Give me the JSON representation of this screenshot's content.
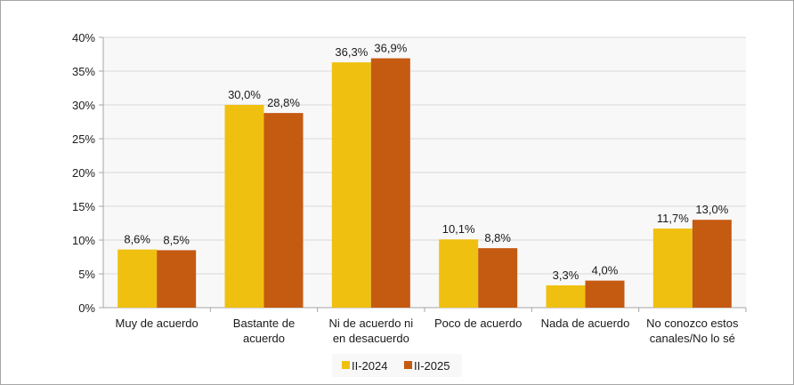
{
  "chart_data": {
    "type": "bar",
    "categories": [
      [
        "Muy de acuerdo"
      ],
      [
        "Bastante de",
        "acuerdo"
      ],
      [
        "Ni de acuerdo ni",
        "en desacuerdo"
      ],
      [
        "Poco de acuerdo"
      ],
      [
        "Nada de acuerdo"
      ],
      [
        "No conozco estos",
        "canales/No lo sé"
      ]
    ],
    "series": [
      {
        "name": "II-2024",
        "color": "#f0c010",
        "values": [
          8.6,
          30.0,
          36.3,
          10.1,
          3.3,
          11.7
        ],
        "labels": [
          "8,6%",
          "30,0%",
          "36,3%",
          "10,1%",
          "3,3%",
          "11,7%"
        ]
      },
      {
        "name": "II-2025",
        "color": "#c55a11",
        "values": [
          8.5,
          28.8,
          36.9,
          8.8,
          4.0,
          13.0
        ],
        "labels": [
          "8,5%",
          "28,8%",
          "36,9%",
          "8,8%",
          "4,0%",
          "13,0%"
        ]
      }
    ],
    "yticks": [
      "0%",
      "5%",
      "10%",
      "15%",
      "20%",
      "25%",
      "30%",
      "35%",
      "40%"
    ],
    "ylim": [
      0,
      40
    ],
    "grid": true,
    "legend": "bottom"
  }
}
